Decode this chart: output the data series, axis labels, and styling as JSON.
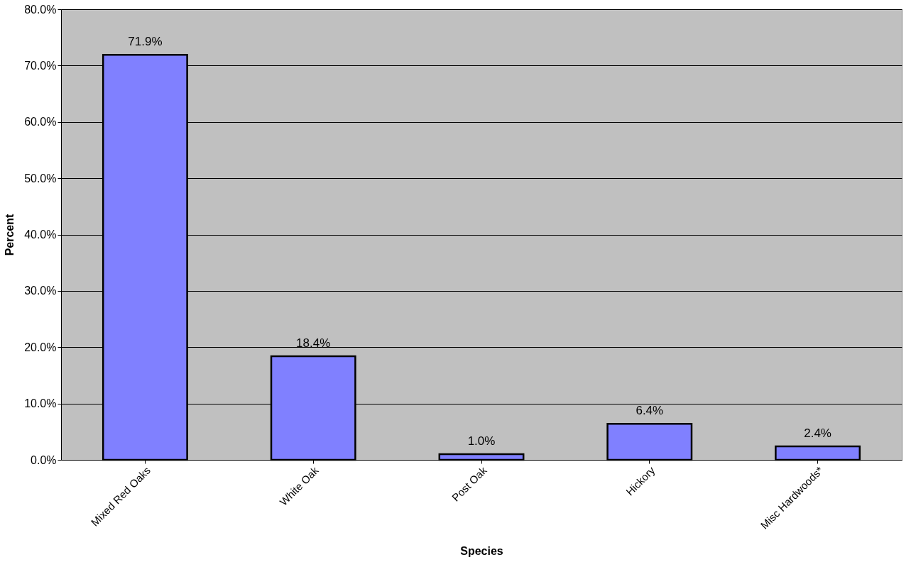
{
  "chart_data": {
    "type": "bar",
    "xlabel": "Species",
    "ylabel": "Percent",
    "categories": [
      "Mixed Red Oaks",
      "White Oak",
      "Post Oak",
      "Hickory",
      "Misc Hardwoods*"
    ],
    "values": [
      71.9,
      18.4,
      1.0,
      6.4,
      2.4
    ],
    "value_labels": [
      "71.9%",
      "18.4%",
      "1.0%",
      "6.4%",
      "2.4%"
    ],
    "color": "#8080ff",
    "ylim": [
      0,
      80
    ],
    "yticks": [
      {
        "value": 0,
        "label": "0.0%"
      },
      {
        "value": 10,
        "label": "10.0%"
      },
      {
        "value": 20,
        "label": "20.0%"
      },
      {
        "value": 30,
        "label": "30.0%"
      },
      {
        "value": 40,
        "label": "40.0%"
      },
      {
        "value": 50,
        "label": "50.0%"
      },
      {
        "value": 60,
        "label": "60.0%"
      },
      {
        "value": 70,
        "label": "70.0%"
      },
      {
        "value": 80,
        "label": "80.0%"
      }
    ],
    "grid": "y"
  }
}
